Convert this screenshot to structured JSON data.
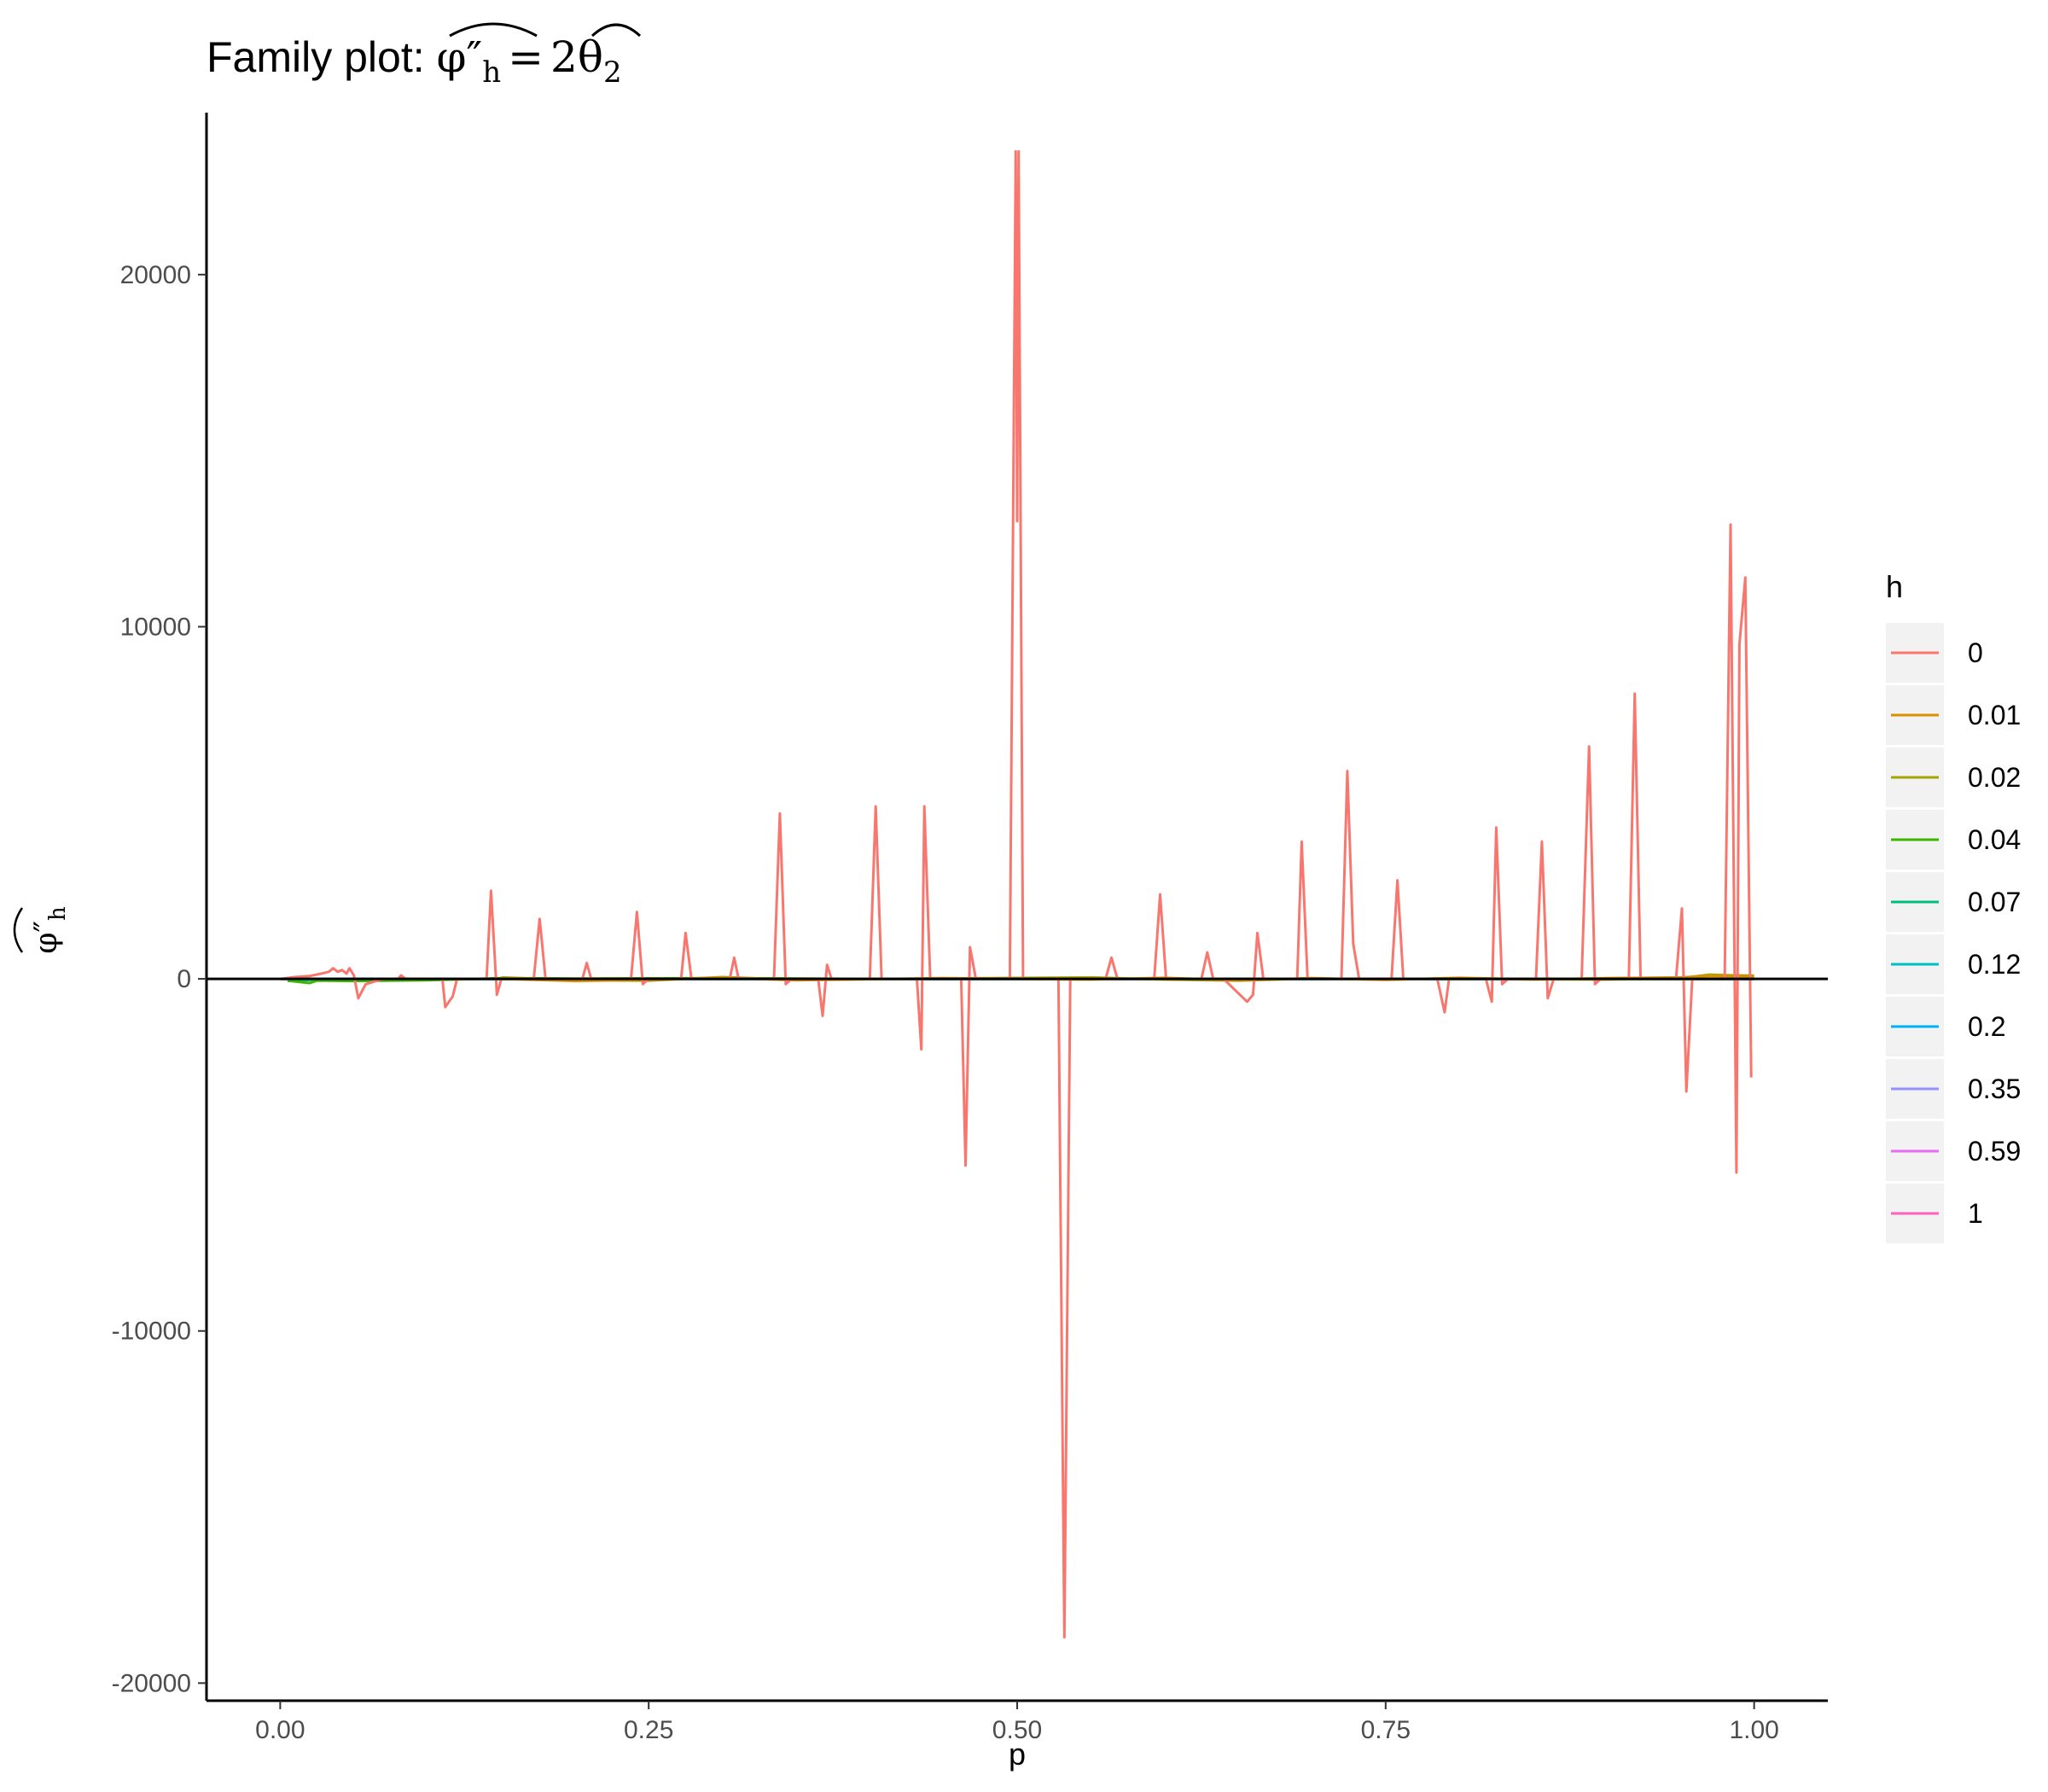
{
  "chart_data": {
    "type": "line",
    "title": {
      "prefix": "Family plot: ",
      "lhs_symbol": "φ″",
      "lhs_sub": "h",
      "equals": "=",
      "rhs_coef": "2",
      "rhs_symbol": "θ",
      "rhs_sub": "2"
    },
    "xlabel": "p",
    "ylabel": {
      "symbol": "φ″",
      "sub": "h"
    },
    "xlim": [
      -0.05,
      1.05
    ],
    "ylim": [
      -20500,
      24600
    ],
    "x_ticks": [
      0,
      0.25,
      0.5,
      0.75,
      1
    ],
    "x_tick_labels": [
      "0.00",
      "0.25",
      "0.50",
      "0.75",
      "1.00"
    ],
    "y_ticks": [
      -20000,
      -10000,
      0,
      10000,
      20000
    ],
    "y_tick_labels": [
      "-20000",
      "-10000",
      "0",
      "10000",
      "20000"
    ],
    "hline": 0,
    "grid": false,
    "legend": {
      "title": "h",
      "position": "right",
      "entries": [
        {
          "label": "0",
          "color": "#F8766D"
        },
        {
          "label": "0.01",
          "color": "#D89000"
        },
        {
          "label": "0.02",
          "color": "#A3A500"
        },
        {
          "label": "0.04",
          "color": "#39B600"
        },
        {
          "label": "0.07",
          "color": "#00BF7D"
        },
        {
          "label": "0.12",
          "color": "#00BFC4"
        },
        {
          "label": "0.2",
          "color": "#00B0F6"
        },
        {
          "label": "0.35",
          "color": "#9590FF"
        },
        {
          "label": "0.59",
          "color": "#E76BF3"
        },
        {
          "label": "1",
          "color": "#FF62BC"
        }
      ]
    },
    "series": [
      {
        "name": "0",
        "color": "#F8766D",
        "points": [
          [
            0.0,
            0
          ],
          [
            0.01,
            50
          ],
          [
            0.02,
            80
          ],
          [
            0.028,
            150
          ],
          [
            0.033,
            200
          ],
          [
            0.036,
            300
          ],
          [
            0.039,
            200
          ],
          [
            0.042,
            250
          ],
          [
            0.045,
            150
          ],
          [
            0.047,
            300
          ],
          [
            0.05,
            100
          ],
          [
            0.053,
            -550
          ],
          [
            0.058,
            -150
          ],
          [
            0.07,
            0
          ],
          [
            0.08,
            0
          ],
          [
            0.082,
            100
          ],
          [
            0.085,
            0
          ],
          [
            0.11,
            0
          ],
          [
            0.112,
            -800
          ],
          [
            0.117,
            -500
          ],
          [
            0.12,
            0
          ],
          [
            0.14,
            0
          ],
          [
            0.143,
            2500
          ],
          [
            0.147,
            -450
          ],
          [
            0.15,
            0
          ],
          [
            0.172,
            0
          ],
          [
            0.176,
            1700
          ],
          [
            0.18,
            0
          ],
          [
            0.205,
            0
          ],
          [
            0.208,
            450
          ],
          [
            0.211,
            0
          ],
          [
            0.238,
            0
          ],
          [
            0.242,
            1900
          ],
          [
            0.246,
            -150
          ],
          [
            0.25,
            0
          ],
          [
            0.272,
            0
          ],
          [
            0.275,
            1300
          ],
          [
            0.279,
            0
          ],
          [
            0.305,
            0
          ],
          [
            0.308,
            600
          ],
          [
            0.311,
            0
          ],
          [
            0.335,
            0
          ],
          [
            0.339,
            4700
          ],
          [
            0.343,
            -150
          ],
          [
            0.347,
            0
          ],
          [
            0.365,
            0
          ],
          [
            0.368,
            -1050
          ],
          [
            0.371,
            400
          ],
          [
            0.374,
            0
          ],
          [
            0.4,
            0
          ],
          [
            0.404,
            4900
          ],
          [
            0.408,
            0
          ],
          [
            0.432,
            0
          ],
          [
            0.435,
            -2000
          ],
          [
            0.437,
            4900
          ],
          [
            0.441,
            0
          ],
          [
            0.462,
            0
          ],
          [
            0.465,
            -5300
          ],
          [
            0.468,
            900
          ],
          [
            0.472,
            0
          ],
          [
            0.495,
            0
          ],
          [
            0.499,
            23500
          ],
          [
            0.5,
            13000
          ],
          [
            0.501,
            23500
          ],
          [
            0.504,
            0
          ],
          [
            0.528,
            0
          ],
          [
            0.532,
            -18700
          ],
          [
            0.536,
            0
          ],
          [
            0.56,
            0
          ],
          [
            0.564,
            600
          ],
          [
            0.568,
            0
          ],
          [
            0.593,
            0
          ],
          [
            0.597,
            2400
          ],
          [
            0.601,
            0
          ],
          [
            0.625,
            0
          ],
          [
            0.629,
            750
          ],
          [
            0.633,
            0
          ],
          [
            0.64,
            0
          ],
          [
            0.656,
            -650
          ],
          [
            0.66,
            -450
          ],
          [
            0.663,
            1300
          ],
          [
            0.667,
            0
          ],
          [
            0.69,
            0
          ],
          [
            0.693,
            3900
          ],
          [
            0.697,
            0
          ],
          [
            0.72,
            0
          ],
          [
            0.724,
            5900
          ],
          [
            0.728,
            1000
          ],
          [
            0.732,
            0
          ],
          [
            0.754,
            0
          ],
          [
            0.758,
            2800
          ],
          [
            0.762,
            0
          ],
          [
            0.785,
            0
          ],
          [
            0.79,
            -950
          ],
          [
            0.793,
            0
          ],
          [
            0.818,
            0
          ],
          [
            0.822,
            -650
          ],
          [
            0.825,
            4300
          ],
          [
            0.829,
            -150
          ],
          [
            0.833,
            0
          ],
          [
            0.852,
            0
          ],
          [
            0.856,
            3900
          ],
          [
            0.86,
            -550
          ],
          [
            0.864,
            0
          ],
          [
            0.883,
            0
          ],
          [
            0.888,
            6600
          ],
          [
            0.892,
            -150
          ],
          [
            0.896,
            0
          ],
          [
            0.915,
            0
          ],
          [
            0.919,
            8100
          ],
          [
            0.923,
            0
          ],
          [
            0.947,
            0
          ],
          [
            0.951,
            2000
          ],
          [
            0.954,
            -3200
          ],
          [
            0.958,
            0
          ],
          [
            0.98,
            0
          ],
          [
            0.984,
            12900
          ],
          [
            0.988,
            -5500
          ],
          [
            0.99,
            9500
          ],
          [
            0.994,
            11400
          ],
          [
            0.998,
            -2800
          ]
        ]
      },
      {
        "name": "0.01",
        "color": "#D89000",
        "points": [
          [
            0.15,
            0
          ],
          [
            0.2,
            -60
          ],
          [
            0.25,
            -30
          ],
          [
            0.3,
            30
          ],
          [
            0.35,
            -40
          ],
          [
            0.45,
            20
          ],
          [
            0.55,
            -20
          ],
          [
            0.6,
            30
          ],
          [
            0.65,
            -40
          ],
          [
            0.7,
            20
          ],
          [
            0.75,
            -30
          ],
          [
            0.8,
            30
          ],
          [
            0.85,
            -20
          ],
          [
            0.9,
            20
          ],
          [
            0.95,
            40
          ],
          [
            0.97,
            80
          ],
          [
            0.985,
            70
          ],
          [
            1.0,
            60
          ]
        ]
      },
      {
        "name": "0.02",
        "color": "#A3A500",
        "points": [
          [
            0.15,
            40
          ],
          [
            0.2,
            -40
          ],
          [
            0.25,
            -50
          ],
          [
            0.3,
            50
          ],
          [
            0.35,
            -30
          ],
          [
            0.45,
            10
          ],
          [
            0.55,
            40
          ],
          [
            0.6,
            -20
          ],
          [
            0.65,
            -50
          ],
          [
            0.7,
            10
          ],
          [
            0.75,
            -20
          ],
          [
            0.8,
            20
          ],
          [
            0.85,
            -10
          ],
          [
            0.9,
            -20
          ],
          [
            0.95,
            20
          ],
          [
            0.97,
            120
          ],
          [
            0.985,
            100
          ],
          [
            1.0,
            90
          ]
        ]
      },
      {
        "name": "0.04",
        "color": "#39B600",
        "points": [
          [
            0.005,
            -50
          ],
          [
            0.02,
            -120
          ],
          [
            0.025,
            -50
          ],
          [
            0.05,
            -60
          ],
          [
            0.1,
            -40
          ],
          [
            0.15,
            20
          ],
          [
            0.2,
            10
          ],
          [
            0.3,
            20
          ],
          [
            0.4,
            0
          ],
          [
            0.5,
            0
          ],
          [
            0.6,
            0
          ],
          [
            0.7,
            0
          ],
          [
            0.8,
            0
          ],
          [
            0.9,
            0
          ],
          [
            1.0,
            0
          ]
        ]
      },
      {
        "name": "0.07",
        "color": "#00BF7D",
        "points": [
          [
            0.005,
            -40
          ],
          [
            0.03,
            -30
          ],
          [
            0.06,
            -20
          ],
          [
            0.1,
            -10
          ],
          [
            0.2,
            0
          ],
          [
            0.5,
            0
          ],
          [
            1.0,
            0
          ]
        ]
      },
      {
        "name": "0.12",
        "color": "#00BFC4",
        "points": [
          [
            0.0,
            0
          ],
          [
            1.0,
            0
          ]
        ]
      },
      {
        "name": "0.2",
        "color": "#00B0F6",
        "points": [
          [
            0.0,
            0
          ],
          [
            1.0,
            0
          ]
        ]
      },
      {
        "name": "0.35",
        "color": "#9590FF",
        "points": [
          [
            0.0,
            0
          ],
          [
            1.0,
            0
          ]
        ]
      },
      {
        "name": "0.59",
        "color": "#E76BF3",
        "points": [
          [
            0.0,
            0
          ],
          [
            1.0,
            0
          ]
        ]
      },
      {
        "name": "1",
        "color": "#FF62BC",
        "points": [
          [
            0.0,
            0
          ],
          [
            1.0,
            0
          ]
        ]
      }
    ]
  }
}
